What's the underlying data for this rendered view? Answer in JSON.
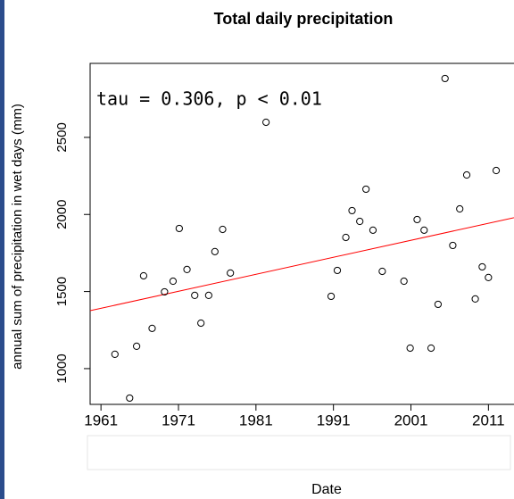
{
  "chart_data": {
    "type": "scatter",
    "title": "Total daily precipitation",
    "x_label": "Date",
    "y_label": "annual sum of precipitation in wet days (mm)",
    "annotation": "tau = 0.306, p < 0.01",
    "x": [
      1962.8,
      1964.7,
      1965.6,
      1966.5,
      1967.6,
      1969.2,
      1970.3,
      1971.1,
      1972.1,
      1973.1,
      1973.9,
      1974.9,
      1975.7,
      1976.7,
      1977.7,
      1982.3,
      1990.7,
      1991.5,
      1992.6,
      1993.4,
      1994.4,
      1995.2,
      1996.1,
      1997.3,
      2000.1,
      2000.9,
      2001.8,
      2002.7,
      2003.6,
      2004.5,
      2005.4,
      2006.4,
      2007.3,
      2008.2,
      2009.3,
      2010.2,
      2011.0,
      2012.0
    ],
    "values": [
      1093,
      809,
      1145,
      1602,
      1261,
      1498,
      1567,
      1909,
      1643,
      1475,
      1295,
      1475,
      1759,
      1903,
      1620,
      2598,
      1469,
      1637,
      1851,
      2025,
      1955,
      2164,
      1898,
      1631,
      1567,
      1133,
      1967,
      1898,
      1133,
      1417,
      2882,
      1799,
      2036,
      2256,
      1452,
      1660,
      1591,
      2285
    ],
    "color": "#000000",
    "trend": {
      "x": [
        1959.6,
        2014.3
      ],
      "y": [
        1376,
        1979
      ],
      "color": "#ff0000"
    },
    "xlim": [
      1959.6,
      2014.3
    ],
    "xticks": [
      1961,
      1971,
      1981,
      1991,
      2001,
      2011
    ],
    "ylim": [
      768,
      2980
    ],
    "yticks": [
      1000,
      1500,
      2000,
      2500
    ]
  }
}
